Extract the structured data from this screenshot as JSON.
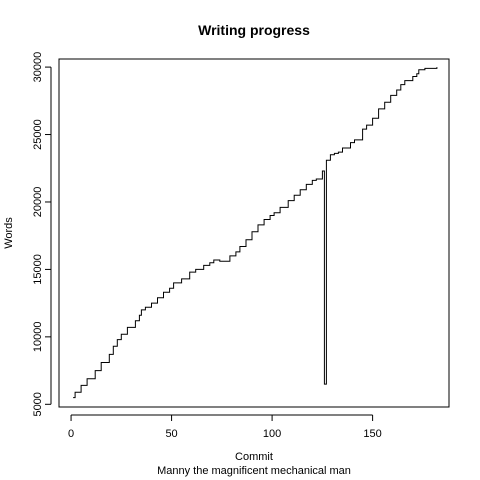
{
  "chart_data": {
    "type": "line",
    "line_style": "step",
    "title": "Writing progress",
    "xlabel": "Commit",
    "ylabel": "Words",
    "subtitle": "Manny the magnificent mechanical man",
    "xlim": [
      -6,
      188
    ],
    "ylim": [
      4800,
      30600
    ],
    "x_ticks": [
      0,
      50,
      100,
      150
    ],
    "y_ticks": [
      5000,
      10000,
      15000,
      20000,
      25000,
      30000
    ],
    "grid": false,
    "legend": "none",
    "series": [
      {
        "x": [
          1,
          2,
          5,
          8,
          12,
          15,
          19,
          21,
          23,
          25,
          28,
          32,
          34,
          35,
          37,
          40,
          43,
          46,
          49,
          51,
          55,
          59,
          62,
          66,
          69,
          71,
          74,
          79,
          82,
          84,
          87,
          90,
          93,
          96,
          99,
          101,
          104,
          108,
          111,
          114,
          117,
          120,
          122,
          125,
          126,
          127,
          129,
          131,
          133,
          135,
          139,
          141,
          145,
          147,
          150,
          153,
          156,
          159,
          162,
          164,
          166,
          170,
          172,
          173,
          176,
          181,
          182
        ],
        "y": [
          5500,
          5900,
          6400,
          6900,
          7500,
          8100,
          8700,
          9300,
          9800,
          10200,
          10700,
          11200,
          11600,
          12000,
          12200,
          12500,
          12900,
          13300,
          13600,
          14000,
          14300,
          14800,
          15000,
          15300,
          15500,
          15700,
          15600,
          16000,
          16300,
          16700,
          17200,
          17800,
          18300,
          18700,
          19000,
          19200,
          19600,
          20100,
          20500,
          20900,
          21300,
          21600,
          21700,
          22300,
          6500,
          23100,
          23500,
          23600,
          23700,
          24000,
          24400,
          24600,
          25400,
          25700,
          26200,
          26900,
          27400,
          27900,
          28300,
          28700,
          29000,
          29300,
          29500,
          29800,
          29900,
          29900,
          30000
        ]
      }
    ]
  }
}
